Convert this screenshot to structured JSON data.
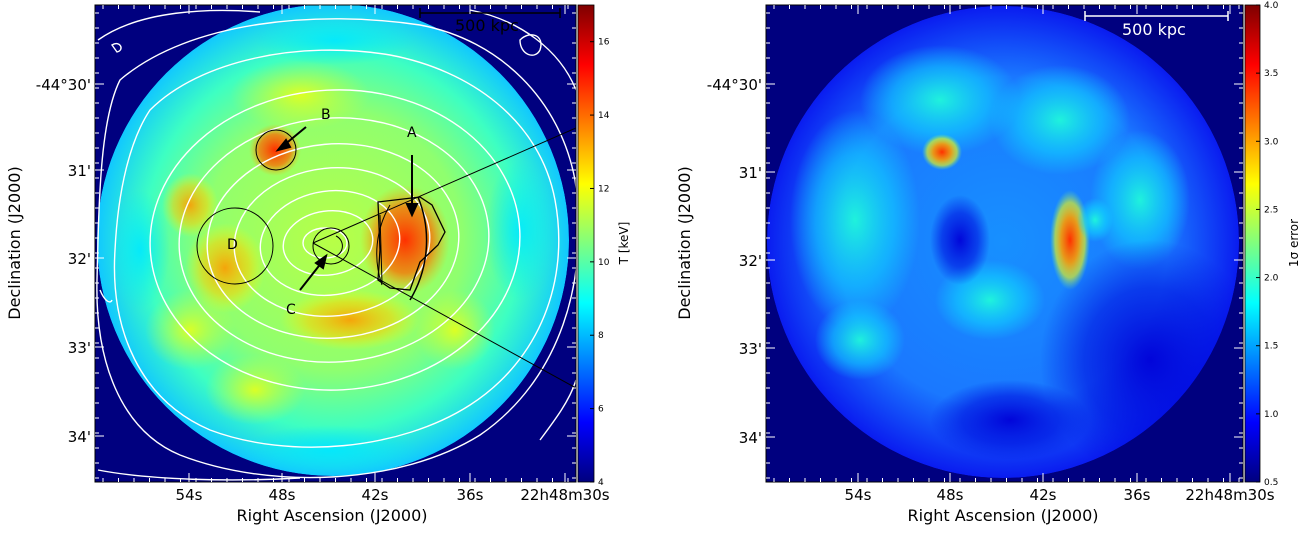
{
  "chart_data": [
    {
      "type": "heatmap",
      "panel": "left",
      "xlabel": "Right Ascension (J2000)",
      "ylabel": "Declination (J2000)",
      "x_ticks": [
        "54s",
        "48s",
        "42s",
        "36s",
        "22h48m30s"
      ],
      "y_ticks": [
        "-44°30'",
        "31'",
        "32'",
        "33'",
        "34'"
      ],
      "colorbar": {
        "label": "T [keV]",
        "range": [
          4,
          17
        ],
        "ticks": [
          "4",
          "6",
          "8",
          "10",
          "12",
          "14",
          "16"
        ],
        "colormap": "jet"
      },
      "scale_bar": "500 kpc",
      "contours": "white",
      "annotations": [
        "A",
        "B",
        "C",
        "D"
      ],
      "regions": [
        {
          "label": "A",
          "kind": "wedge-sector",
          "value_keV": 16
        },
        {
          "label": "B",
          "kind": "circle",
          "value_keV": 14
        },
        {
          "label": "C",
          "kind": "circle",
          "value_keV": 10
        },
        {
          "label": "D",
          "kind": "circle",
          "value_keV": 13
        }
      ]
    },
    {
      "type": "heatmap",
      "panel": "right",
      "xlabel": "Right Ascension (J2000)",
      "ylabel": "Declination (J2000)",
      "x_ticks": [
        "54s",
        "48s",
        "42s",
        "36s",
        "22h48m30s"
      ],
      "y_ticks": [
        "-44°30'",
        "31'",
        "32'",
        "33'",
        "34'"
      ],
      "colorbar": {
        "label": "1σ error",
        "range": [
          0.5,
          4.0
        ],
        "ticks": [
          "0.5",
          "1.0",
          "1.5",
          "2.0",
          "2.5",
          "3.0",
          "3.5",
          "4.0"
        ],
        "colormap": "jet"
      },
      "scale_bar": "500 kpc"
    }
  ],
  "colors": {
    "jet_stops": [
      "#00007f",
      "#0000ff",
      "#007fff",
      "#00ffff",
      "#7fff7f",
      "#ffff00",
      "#ff7f00",
      "#ff0000",
      "#7f0000"
    ],
    "background": "#00007f",
    "contour": "#ffffff"
  }
}
